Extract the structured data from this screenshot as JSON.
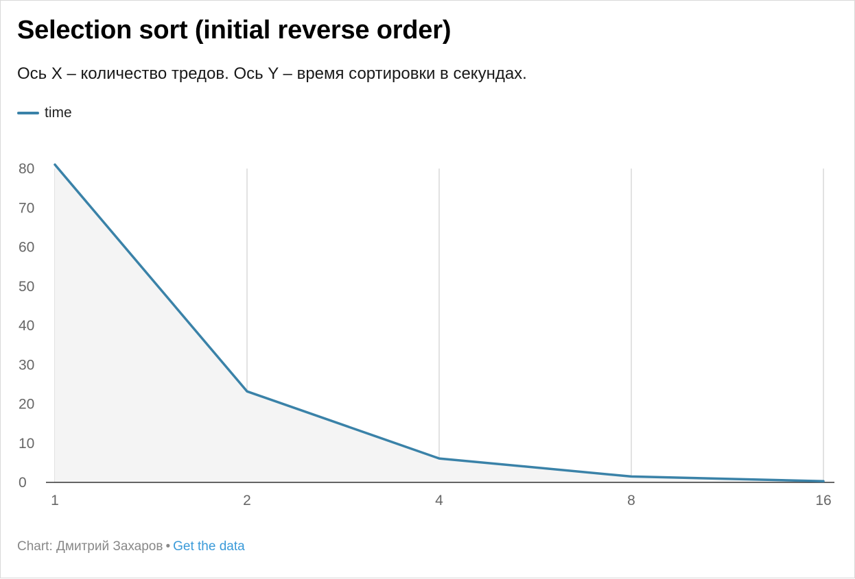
{
  "title": "Selection sort (initial reverse order)",
  "subtitle": "Ось X – количество тредов. Ось Y – время сортировки в секундах.",
  "footer": {
    "credit": "Chart: Дмитрий Захаров",
    "separator": "•",
    "link_label": "Get the data"
  },
  "colors": {
    "series": "#3a82a8",
    "area": "#f4f4f4",
    "grid": "#d9d9d9",
    "axis": "#333333",
    "link": "#3a9ad9"
  },
  "chart_data": {
    "type": "line",
    "x": [
      1,
      2,
      4,
      8,
      16
    ],
    "x_tick_labels": [
      "1",
      "2",
      "4",
      "8",
      "16"
    ],
    "series": [
      {
        "name": "time",
        "values": [
          81,
          23.2,
          6.1,
          1.5,
          0.3
        ]
      }
    ],
    "ylim": [
      0,
      80
    ],
    "y_ticks": [
      0,
      10,
      20,
      30,
      40,
      50,
      60,
      70,
      80
    ],
    "y_tick_labels": [
      "0",
      "10",
      "20",
      "30",
      "40",
      "50",
      "60",
      "70",
      "80"
    ],
    "area_fill": true,
    "grid": "vertical",
    "legend": "top-left"
  }
}
